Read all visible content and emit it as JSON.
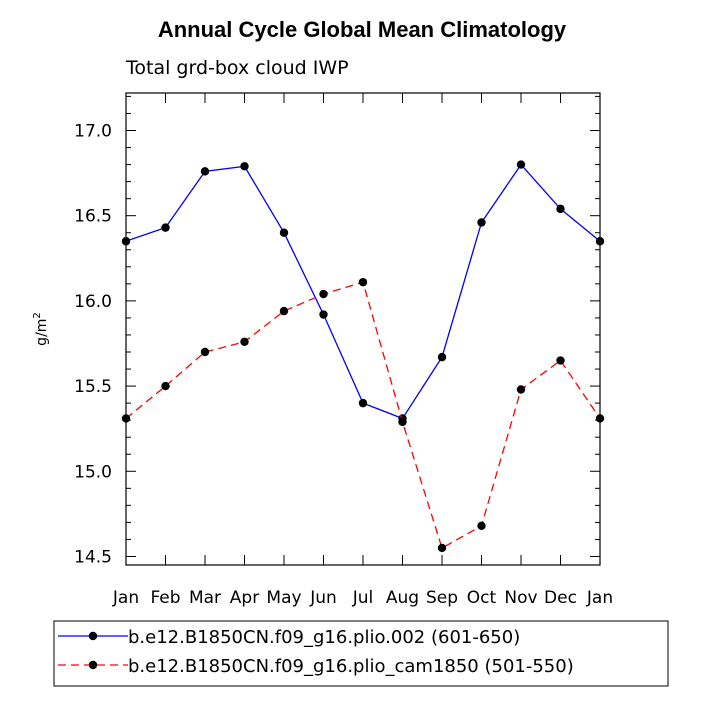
{
  "chart_data": {
    "type": "line",
    "title": "Annual Cycle Global Mean Climatology",
    "subtitle": "Total grd-box cloud IWP",
    "ylabel": "g/m",
    "ylabel_sup": "2",
    "xlabel": "",
    "categories": [
      "Jan",
      "Feb",
      "Mar",
      "Apr",
      "May",
      "Jun",
      "Jul",
      "Aug",
      "Sep",
      "Oct",
      "Nov",
      "Dec",
      "Jan"
    ],
    "ylim": [
      14.45,
      17.22
    ],
    "yticks": [
      "14.5",
      "15.0",
      "15.5",
      "16.0",
      "16.5",
      "17.0"
    ],
    "grid": false,
    "legend_position": "bottom",
    "series": [
      {
        "name": "b.e12.B1850CN.f09_g16.plio.002 (601-650)",
        "color": "#0000ff",
        "dash": "solid",
        "values": [
          16.35,
          16.43,
          16.76,
          16.79,
          16.4,
          15.92,
          15.4,
          15.31,
          15.67,
          16.46,
          16.8,
          16.54,
          16.35
        ]
      },
      {
        "name": "b.e12.B1850CN.f09_g16.plio_cam1850 (501-550)",
        "color": "#ff0000",
        "dash": "dashed",
        "values": [
          15.31,
          15.5,
          15.7,
          15.76,
          15.94,
          16.04,
          16.11,
          15.29,
          14.55,
          14.68,
          15.48,
          15.65,
          15.31
        ]
      }
    ]
  }
}
